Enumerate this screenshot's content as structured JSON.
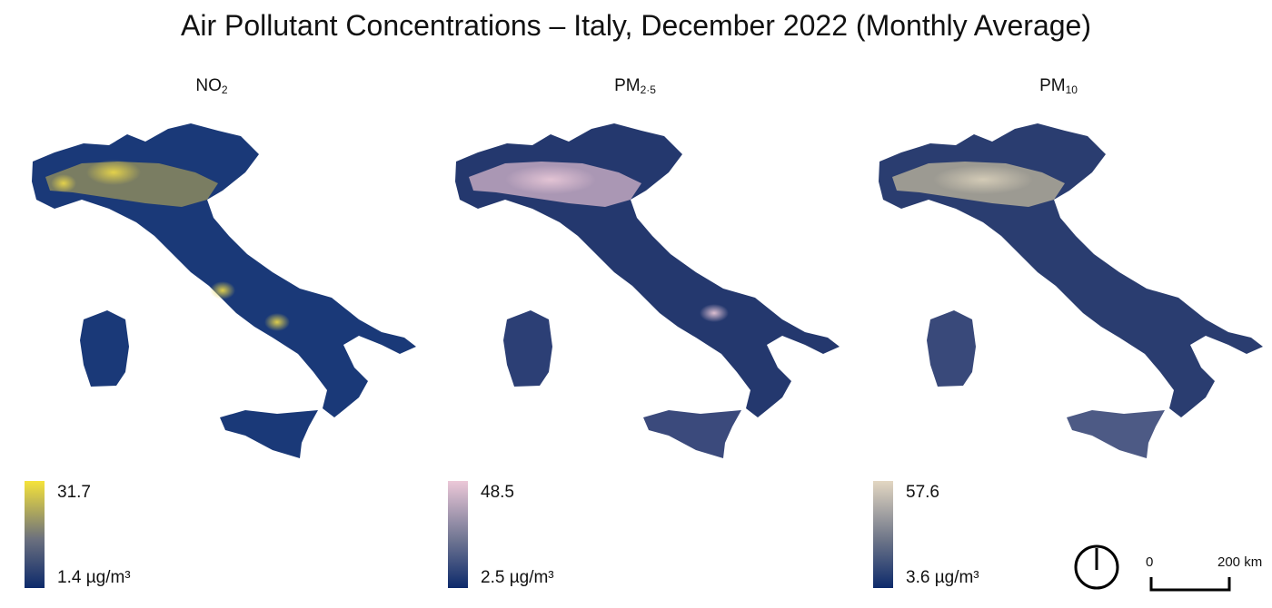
{
  "title": "Air Pollutant Concentrations – Italy, December 2022 (Monthly Average)",
  "panels": [
    {
      "label_main": "NO",
      "label_sub": "2",
      "legend_max": "31.7",
      "legend_min": "1.4 µg/m³",
      "colors": {
        "low": "#0d2a6b",
        "mid": "#6a6f7e",
        "high": "#f5e33a"
      }
    },
    {
      "label_main": "PM",
      "label_sub": "2·5",
      "legend_max": "48.5",
      "legend_min": "2.5 µg/m³",
      "colors": {
        "low": "#0d2a6b",
        "mid": "#6f7592",
        "high": "#ecc8d8"
      }
    },
    {
      "label_main": "PM",
      "label_sub": "10",
      "legend_max": "57.6",
      "legend_min": "3.6 µg/m³",
      "colors": {
        "low": "#0d2a6b",
        "mid": "#6d7588",
        "high": "#e3d7c2"
      }
    }
  ],
  "scale": {
    "start": "0",
    "end": "200 km"
  },
  "icons": {
    "north_arrow": "north-arrow-icon"
  }
}
